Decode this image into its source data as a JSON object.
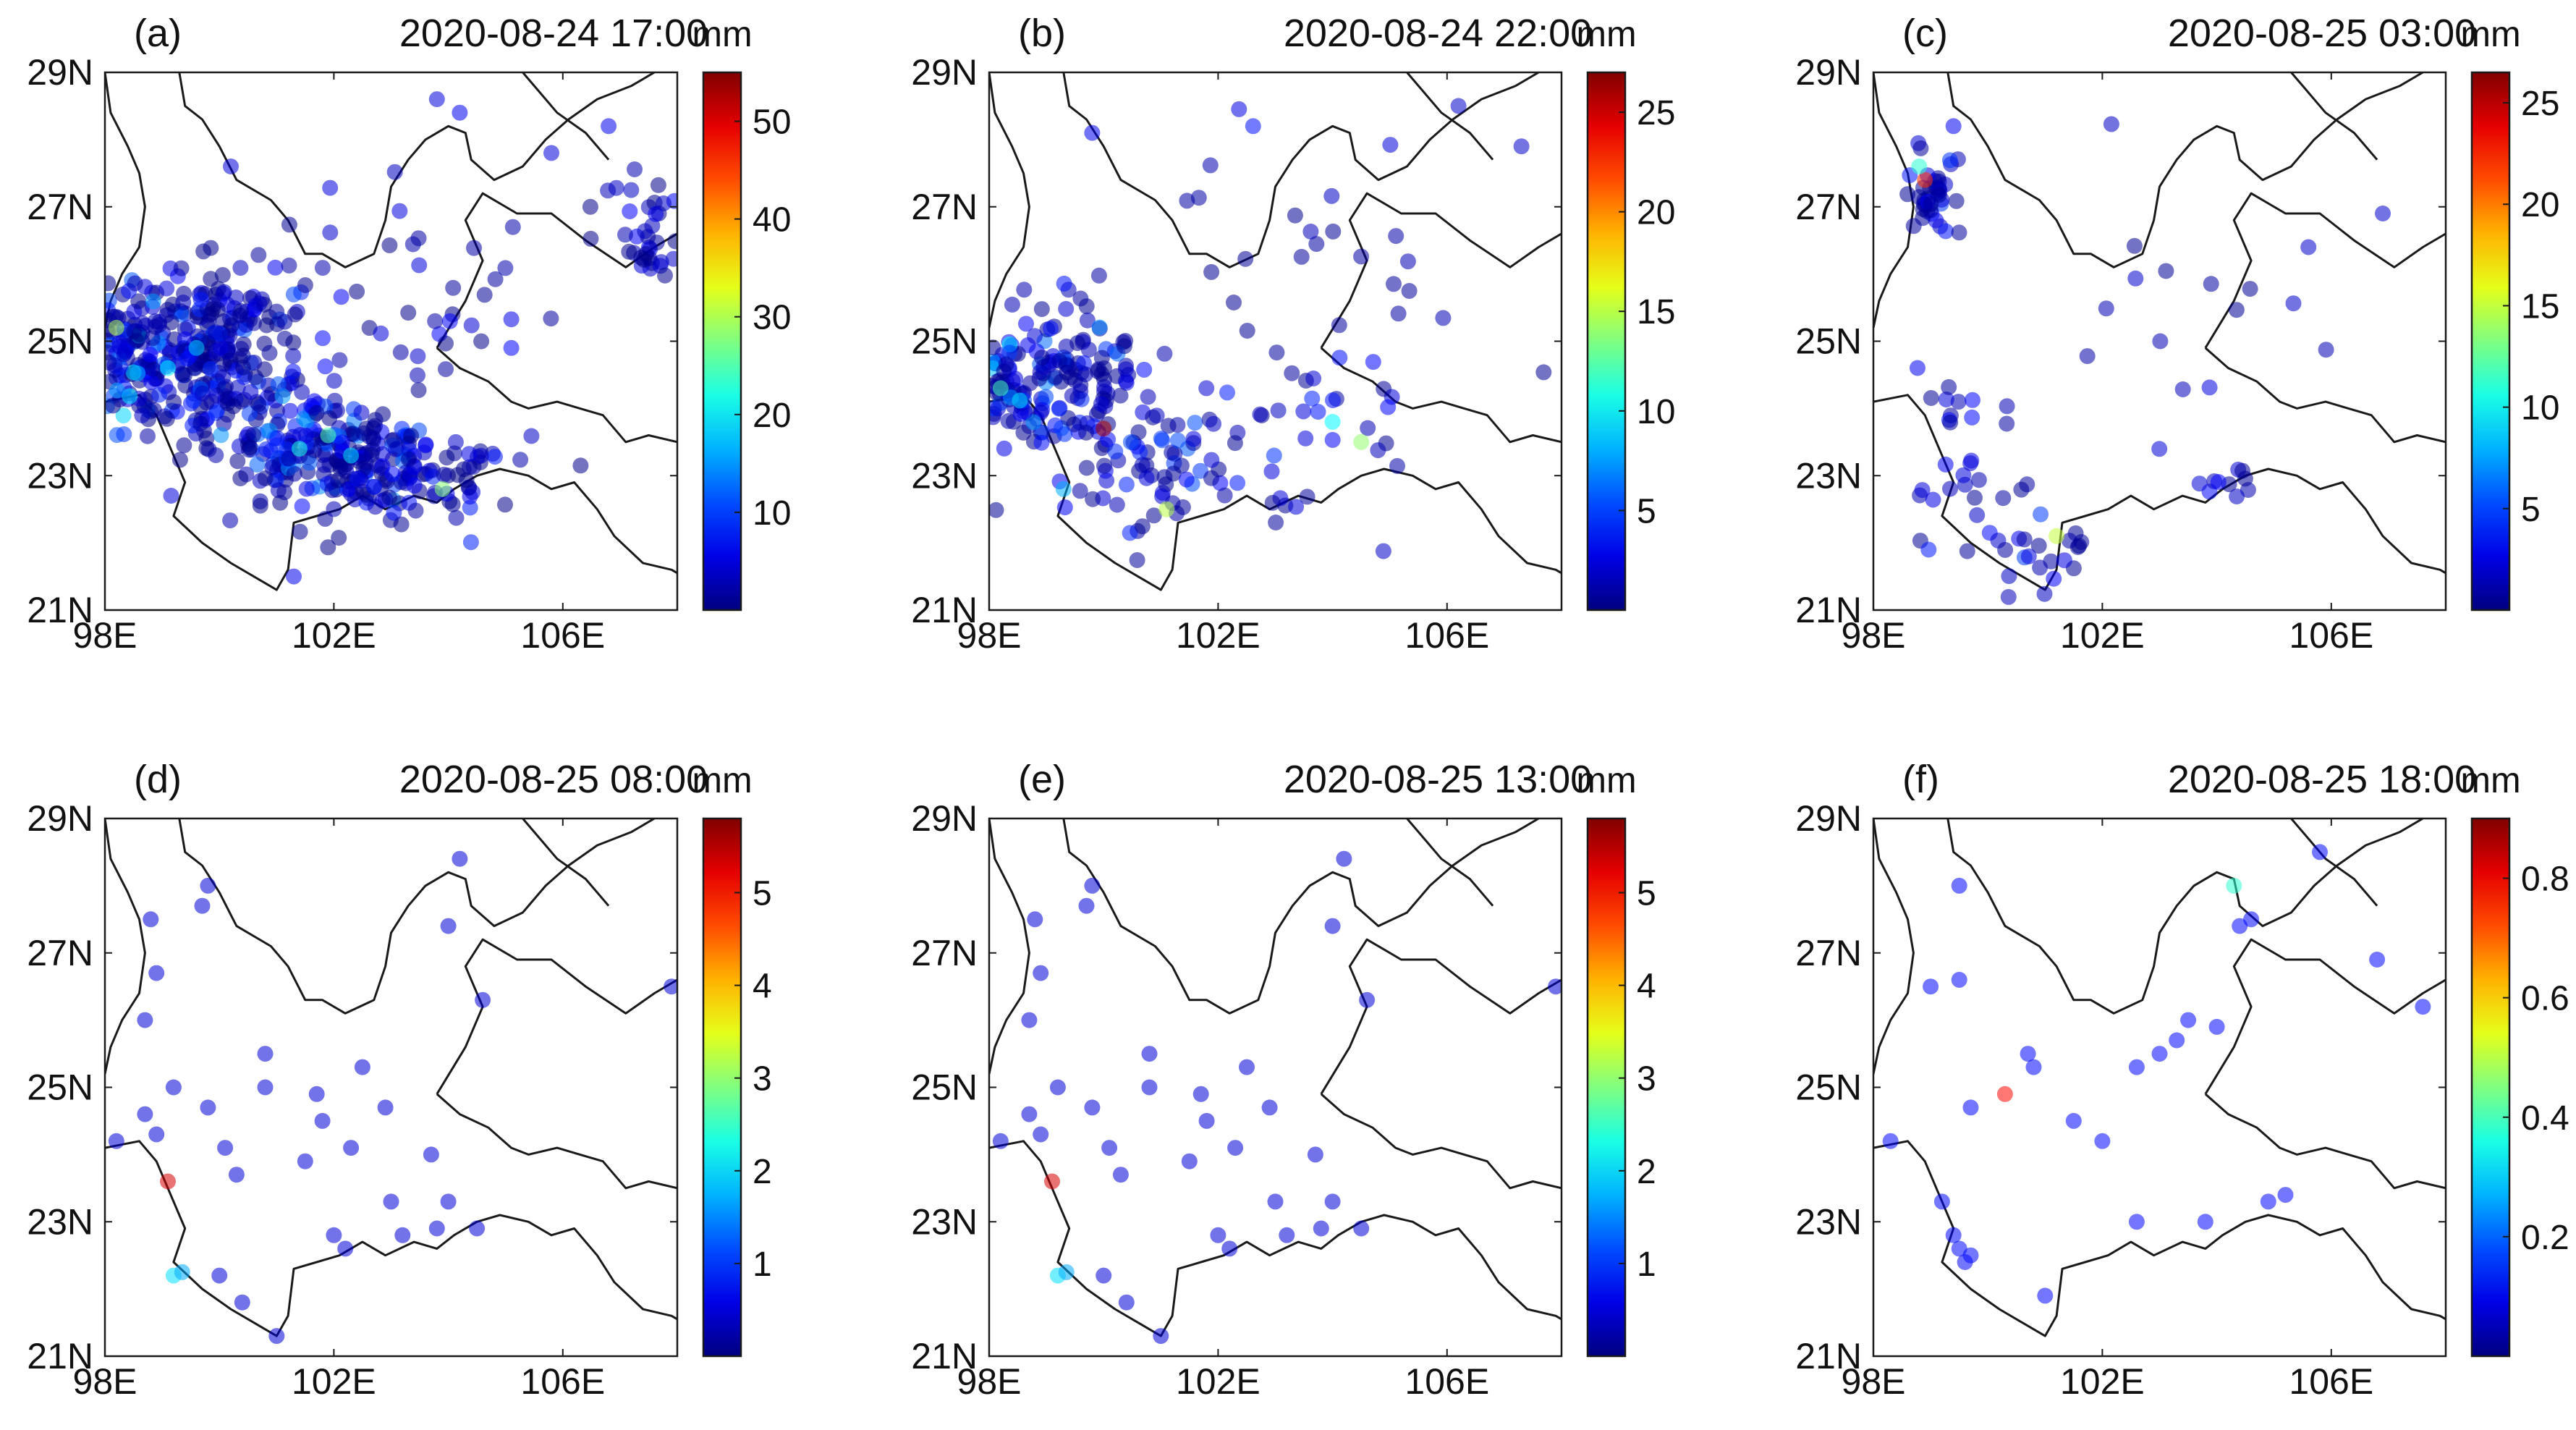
{
  "chart_data": {
    "type": "scatter",
    "map_extent": {
      "lon": [
        98,
        108
      ],
      "lat": [
        21,
        29
      ]
    },
    "x_ticks": [
      "98E",
      "102E",
      "106E"
    ],
    "x_tick_values": [
      98,
      102,
      106
    ],
    "y_ticks": [
      "29N",
      "27N",
      "25N",
      "23N",
      "21N"
    ],
    "y_tick_values": [
      29,
      27,
      25,
      23,
      21
    ],
    "colormap": "jet",
    "point_alpha": 0.55,
    "panels": [
      {
        "label": "(a)",
        "title": "2020-08-24 17:00",
        "unit": "mm",
        "cmax": 55,
        "cticks": [
          10,
          20,
          30,
          40,
          50
        ],
        "clusters": [
          {
            "lon": 99.5,
            "lat": 24.8,
            "slon": 0.9,
            "slat": 0.7,
            "n": 320,
            "vmax": 12
          },
          {
            "lon": 98.4,
            "lat": 24.8,
            "slon": 0.3,
            "slat": 0.4,
            "n": 50,
            "vmax": 20
          },
          {
            "lon": 101.7,
            "lat": 23.4,
            "slon": 0.9,
            "slat": 0.45,
            "n": 190,
            "vmax": 16
          },
          {
            "lon": 103.5,
            "lat": 22.9,
            "slon": 0.9,
            "slat": 0.3,
            "n": 90,
            "vmax": 9
          },
          {
            "lon": 107.5,
            "lat": 26.6,
            "slon": 0.4,
            "slat": 0.35,
            "n": 40,
            "vmax": 8
          },
          {
            "lon": 102.5,
            "lat": 25.6,
            "slon": 1.6,
            "slat": 0.9,
            "n": 50,
            "vmax": 7
          }
        ],
        "points": [
          {
            "lon": 98.2,
            "lat": 25.2,
            "v": 30
          },
          {
            "lon": 101.9,
            "lat": 23.6,
            "v": 25
          },
          {
            "lon": 103.9,
            "lat": 22.8,
            "v": 28
          },
          {
            "lon": 101.4,
            "lat": 23.4,
            "v": 22
          },
          {
            "lon": 99.1,
            "lat": 24.6,
            "v": 20
          },
          {
            "lon": 99.6,
            "lat": 24.9,
            "v": 18
          },
          {
            "lon": 102.3,
            "lat": 23.3,
            "v": 19
          },
          {
            "lon": 104.2,
            "lat": 28.4,
            "v": 6
          },
          {
            "lon": 103.8,
            "lat": 28.6,
            "v": 5
          },
          {
            "lon": 106.8,
            "lat": 28.2,
            "v": 6
          },
          {
            "lon": 100.2,
            "lat": 27.6,
            "v": 5
          },
          {
            "lon": 105.8,
            "lat": 27.8,
            "v": 5
          },
          {
            "lon": 101.3,
            "lat": 21.5,
            "v": 6
          },
          {
            "lon": 105.1,
            "lat": 24.9,
            "v": 7
          }
        ]
      },
      {
        "label": "(b)",
        "title": "2020-08-24 22:00",
        "unit": "mm",
        "cmax": 27,
        "cticks": [
          5,
          10,
          15,
          20,
          25
        ],
        "clusters": [
          {
            "lon": 99.0,
            "lat": 24.4,
            "slon": 0.7,
            "slat": 0.6,
            "n": 150,
            "vmax": 7
          },
          {
            "lon": 98.3,
            "lat": 24.6,
            "slon": 0.25,
            "slat": 0.35,
            "n": 30,
            "vmax": 10
          },
          {
            "lon": 101.0,
            "lat": 23.2,
            "slon": 0.9,
            "slat": 0.55,
            "n": 60,
            "vmax": 6
          },
          {
            "lon": 103.2,
            "lat": 23.7,
            "slon": 1.2,
            "slat": 0.8,
            "n": 45,
            "vmax": 5
          },
          {
            "lon": 103.5,
            "lat": 26.3,
            "slon": 1.8,
            "slat": 1.1,
            "n": 25,
            "vmax": 4
          }
        ],
        "points": [
          {
            "lon": 100.0,
            "lat": 23.7,
            "v": 26
          },
          {
            "lon": 101.1,
            "lat": 22.5,
            "v": 15
          },
          {
            "lon": 98.2,
            "lat": 24.3,
            "v": 12
          },
          {
            "lon": 104.0,
            "lat": 23.8,
            "v": 10
          },
          {
            "lon": 104.5,
            "lat": 23.5,
            "v": 14
          },
          {
            "lon": 99.3,
            "lat": 22.8,
            "v": 8
          },
          {
            "lon": 99.8,
            "lat": 28.1,
            "v": 3
          },
          {
            "lon": 106.2,
            "lat": 28.5,
            "v": 2
          },
          {
            "lon": 107.3,
            "lat": 27.9,
            "v": 2
          }
        ]
      },
      {
        "label": "(c)",
        "title": "2020-08-25 03:00",
        "unit": "mm",
        "cmax": 26.5,
        "cticks": [
          5,
          10,
          15,
          20,
          25
        ],
        "clusters": [
          {
            "lon": 99.1,
            "lat": 27.2,
            "slon": 0.25,
            "slat": 0.3,
            "n": 40,
            "vmax": 5
          },
          {
            "lon": 99.6,
            "lat": 23.2,
            "slon": 0.6,
            "slat": 0.8,
            "n": 35,
            "vmax": 4
          },
          {
            "lon": 101.0,
            "lat": 21.7,
            "slon": 0.5,
            "slat": 0.3,
            "n": 18,
            "vmax": 5
          },
          {
            "lon": 104.2,
            "lat": 22.9,
            "slon": 0.3,
            "slat": 0.15,
            "n": 10,
            "vmax": 4
          },
          {
            "lon": 103.5,
            "lat": 25.8,
            "slon": 1.6,
            "slat": 1.1,
            "n": 15,
            "vmax": 3
          }
        ],
        "points": [
          {
            "lon": 98.9,
            "lat": 27.4,
            "v": 22
          },
          {
            "lon": 101.2,
            "lat": 22.1,
            "v": 15
          },
          {
            "lon": 98.8,
            "lat": 27.6,
            "v": 11
          },
          {
            "lon": 99.4,
            "lat": 28.2,
            "v": 3
          },
          {
            "lon": 106.9,
            "lat": 26.9,
            "v": 2
          },
          {
            "lon": 105.6,
            "lat": 26.4,
            "v": 2
          }
        ]
      },
      {
        "label": "(d)",
        "title": "2020-08-25 08:00",
        "unit": "mm",
        "cmax": 5.8,
        "cticks": [
          1,
          2,
          3,
          4,
          5
        ],
        "clusters": [],
        "points": [
          {
            "lon": 99.1,
            "lat": 23.6,
            "v": 5.3
          },
          {
            "lon": 99.2,
            "lat": 22.2,
            "v": 2.0
          },
          {
            "lon": 99.35,
            "lat": 22.25,
            "v": 1.7
          },
          {
            "lon": 98.8,
            "lat": 27.5,
            "v": 0.5
          },
          {
            "lon": 98.9,
            "lat": 26.7,
            "v": 0.5
          },
          {
            "lon": 98.7,
            "lat": 26.0,
            "v": 0.5
          },
          {
            "lon": 98.7,
            "lat": 24.6,
            "v": 0.5
          },
          {
            "lon": 98.2,
            "lat": 24.2,
            "v": 0.5
          },
          {
            "lon": 98.9,
            "lat": 24.3,
            "v": 0.5
          },
          {
            "lon": 99.2,
            "lat": 25.0,
            "v": 0.5
          },
          {
            "lon": 99.7,
            "lat": 27.7,
            "v": 0.5
          },
          {
            "lon": 99.8,
            "lat": 28.0,
            "v": 0.5
          },
          {
            "lon": 99.8,
            "lat": 24.7,
            "v": 0.5
          },
          {
            "lon": 100.1,
            "lat": 24.1,
            "v": 0.5
          },
          {
            "lon": 100.3,
            "lat": 23.7,
            "v": 0.5
          },
          {
            "lon": 100.8,
            "lat": 25.5,
            "v": 0.5
          },
          {
            "lon": 100.8,
            "lat": 25.0,
            "v": 0.5
          },
          {
            "lon": 101.5,
            "lat": 23.9,
            "v": 0.5
          },
          {
            "lon": 101.7,
            "lat": 24.9,
            "v": 0.5
          },
          {
            "lon": 101.8,
            "lat": 24.5,
            "v": 0.5
          },
          {
            "lon": 102.3,
            "lat": 24.1,
            "v": 0.5
          },
          {
            "lon": 102.5,
            "lat": 25.3,
            "v": 0.5
          },
          {
            "lon": 102.9,
            "lat": 24.7,
            "v": 0.5
          },
          {
            "lon": 102.0,
            "lat": 22.8,
            "v": 0.5
          },
          {
            "lon": 102.2,
            "lat": 22.6,
            "v": 0.5
          },
          {
            "lon": 103.0,
            "lat": 23.3,
            "v": 0.5
          },
          {
            "lon": 103.2,
            "lat": 22.8,
            "v": 0.5
          },
          {
            "lon": 103.7,
            "lat": 24.0,
            "v": 0.5
          },
          {
            "lon": 103.8,
            "lat": 22.9,
            "v": 0.5
          },
          {
            "lon": 104.2,
            "lat": 28.4,
            "v": 0.5
          },
          {
            "lon": 104.0,
            "lat": 27.4,
            "v": 0.5
          },
          {
            "lon": 104.6,
            "lat": 26.3,
            "v": 0.5
          },
          {
            "lon": 104.5,
            "lat": 22.9,
            "v": 0.5
          },
          {
            "lon": 107.9,
            "lat": 26.5,
            "v": 0.5
          },
          {
            "lon": 100.0,
            "lat": 22.2,
            "v": 0.5
          },
          {
            "lon": 100.4,
            "lat": 21.8,
            "v": 0.5
          },
          {
            "lon": 101.0,
            "lat": 21.3,
            "v": 0.5
          },
          {
            "lon": 104.0,
            "lat": 23.3,
            "v": 0.5
          }
        ]
      },
      {
        "label": "(e)",
        "title": "2020-08-25 13:00",
        "unit": "mm",
        "cmax": 5.8,
        "cticks": [
          1,
          2,
          3,
          4,
          5
        ],
        "clusters": [],
        "points": [
          {
            "lon": 99.1,
            "lat": 23.6,
            "v": 5.3
          },
          {
            "lon": 99.2,
            "lat": 22.2,
            "v": 2.0
          },
          {
            "lon": 99.35,
            "lat": 22.25,
            "v": 1.7
          },
          {
            "lon": 98.8,
            "lat": 27.5,
            "v": 0.5
          },
          {
            "lon": 98.9,
            "lat": 26.7,
            "v": 0.5
          },
          {
            "lon": 98.7,
            "lat": 26.0,
            "v": 0.5
          },
          {
            "lon": 98.7,
            "lat": 24.6,
            "v": 0.5
          },
          {
            "lon": 98.2,
            "lat": 24.2,
            "v": 0.5
          },
          {
            "lon": 98.9,
            "lat": 24.3,
            "v": 0.5
          },
          {
            "lon": 99.2,
            "lat": 25.0,
            "v": 0.5
          },
          {
            "lon": 99.7,
            "lat": 27.7,
            "v": 0.5
          },
          {
            "lon": 99.8,
            "lat": 28.0,
            "v": 0.5
          },
          {
            "lon": 99.8,
            "lat": 24.7,
            "v": 0.5
          },
          {
            "lon": 100.1,
            "lat": 24.1,
            "v": 0.5
          },
          {
            "lon": 100.3,
            "lat": 23.7,
            "v": 0.5
          },
          {
            "lon": 100.8,
            "lat": 25.5,
            "v": 0.5
          },
          {
            "lon": 100.8,
            "lat": 25.0,
            "v": 0.5
          },
          {
            "lon": 101.5,
            "lat": 23.9,
            "v": 0.5
          },
          {
            "lon": 101.7,
            "lat": 24.9,
            "v": 0.5
          },
          {
            "lon": 101.8,
            "lat": 24.5,
            "v": 0.5
          },
          {
            "lon": 102.3,
            "lat": 24.1,
            "v": 0.5
          },
          {
            "lon": 102.5,
            "lat": 25.3,
            "v": 0.5
          },
          {
            "lon": 102.9,
            "lat": 24.7,
            "v": 0.5
          },
          {
            "lon": 102.0,
            "lat": 22.8,
            "v": 0.5
          },
          {
            "lon": 102.2,
            "lat": 22.6,
            "v": 0.5
          },
          {
            "lon": 103.0,
            "lat": 23.3,
            "v": 0.5
          },
          {
            "lon": 103.2,
            "lat": 22.8,
            "v": 0.5
          },
          {
            "lon": 103.7,
            "lat": 24.0,
            "v": 0.5
          },
          {
            "lon": 103.8,
            "lat": 22.9,
            "v": 0.5
          },
          {
            "lon": 104.2,
            "lat": 28.4,
            "v": 0.5
          },
          {
            "lon": 104.0,
            "lat": 27.4,
            "v": 0.5
          },
          {
            "lon": 104.6,
            "lat": 26.3,
            "v": 0.5
          },
          {
            "lon": 104.5,
            "lat": 22.9,
            "v": 0.5
          },
          {
            "lon": 107.9,
            "lat": 26.5,
            "v": 0.5
          },
          {
            "lon": 100.0,
            "lat": 22.2,
            "v": 0.5
          },
          {
            "lon": 100.4,
            "lat": 21.8,
            "v": 0.5
          },
          {
            "lon": 101.0,
            "lat": 21.3,
            "v": 0.5
          },
          {
            "lon": 104.0,
            "lat": 23.3,
            "v": 0.5
          }
        ]
      },
      {
        "label": "(f)",
        "title": "2020-08-25 18:00",
        "unit": "mm",
        "cmax": 0.9,
        "cticks": [
          0.2,
          0.4,
          0.6,
          0.8
        ],
        "clusters": [],
        "points": [
          {
            "lon": 100.3,
            "lat": 24.9,
            "v": 0.78
          },
          {
            "lon": 104.3,
            "lat": 28.0,
            "v": 0.38
          },
          {
            "lon": 99.5,
            "lat": 28.0,
            "v": 0.12
          },
          {
            "lon": 99.0,
            "lat": 26.5,
            "v": 0.12
          },
          {
            "lon": 99.5,
            "lat": 26.6,
            "v": 0.12
          },
          {
            "lon": 98.3,
            "lat": 24.2,
            "v": 0.12
          },
          {
            "lon": 99.7,
            "lat": 24.7,
            "v": 0.12
          },
          {
            "lon": 100.7,
            "lat": 25.5,
            "v": 0.12
          },
          {
            "lon": 100.8,
            "lat": 25.3,
            "v": 0.12
          },
          {
            "lon": 101.5,
            "lat": 24.5,
            "v": 0.12
          },
          {
            "lon": 102.0,
            "lat": 24.2,
            "v": 0.12
          },
          {
            "lon": 102.6,
            "lat": 25.3,
            "v": 0.12
          },
          {
            "lon": 103.0,
            "lat": 25.5,
            "v": 0.12
          },
          {
            "lon": 103.3,
            "lat": 25.7,
            "v": 0.12
          },
          {
            "lon": 103.5,
            "lat": 26.0,
            "v": 0.12
          },
          {
            "lon": 104.0,
            "lat": 25.9,
            "v": 0.12
          },
          {
            "lon": 104.4,
            "lat": 27.4,
            "v": 0.12
          },
          {
            "lon": 104.6,
            "lat": 27.5,
            "v": 0.12
          },
          {
            "lon": 105.8,
            "lat": 28.5,
            "v": 0.12
          },
          {
            "lon": 106.8,
            "lat": 26.9,
            "v": 0.12
          },
          {
            "lon": 107.6,
            "lat": 26.2,
            "v": 0.12
          },
          {
            "lon": 99.4,
            "lat": 22.8,
            "v": 0.12
          },
          {
            "lon": 99.5,
            "lat": 22.6,
            "v": 0.12
          },
          {
            "lon": 99.7,
            "lat": 22.5,
            "v": 0.12
          },
          {
            "lon": 99.6,
            "lat": 22.4,
            "v": 0.12
          },
          {
            "lon": 99.2,
            "lat": 23.3,
            "v": 0.12
          },
          {
            "lon": 101.0,
            "lat": 21.9,
            "v": 0.12
          },
          {
            "lon": 102.6,
            "lat": 23.0,
            "v": 0.12
          },
          {
            "lon": 103.8,
            "lat": 23.0,
            "v": 0.12
          },
          {
            "lon": 104.9,
            "lat": 23.3,
            "v": 0.12
          },
          {
            "lon": 105.2,
            "lat": 23.4,
            "v": 0.12
          }
        ]
      }
    ]
  }
}
